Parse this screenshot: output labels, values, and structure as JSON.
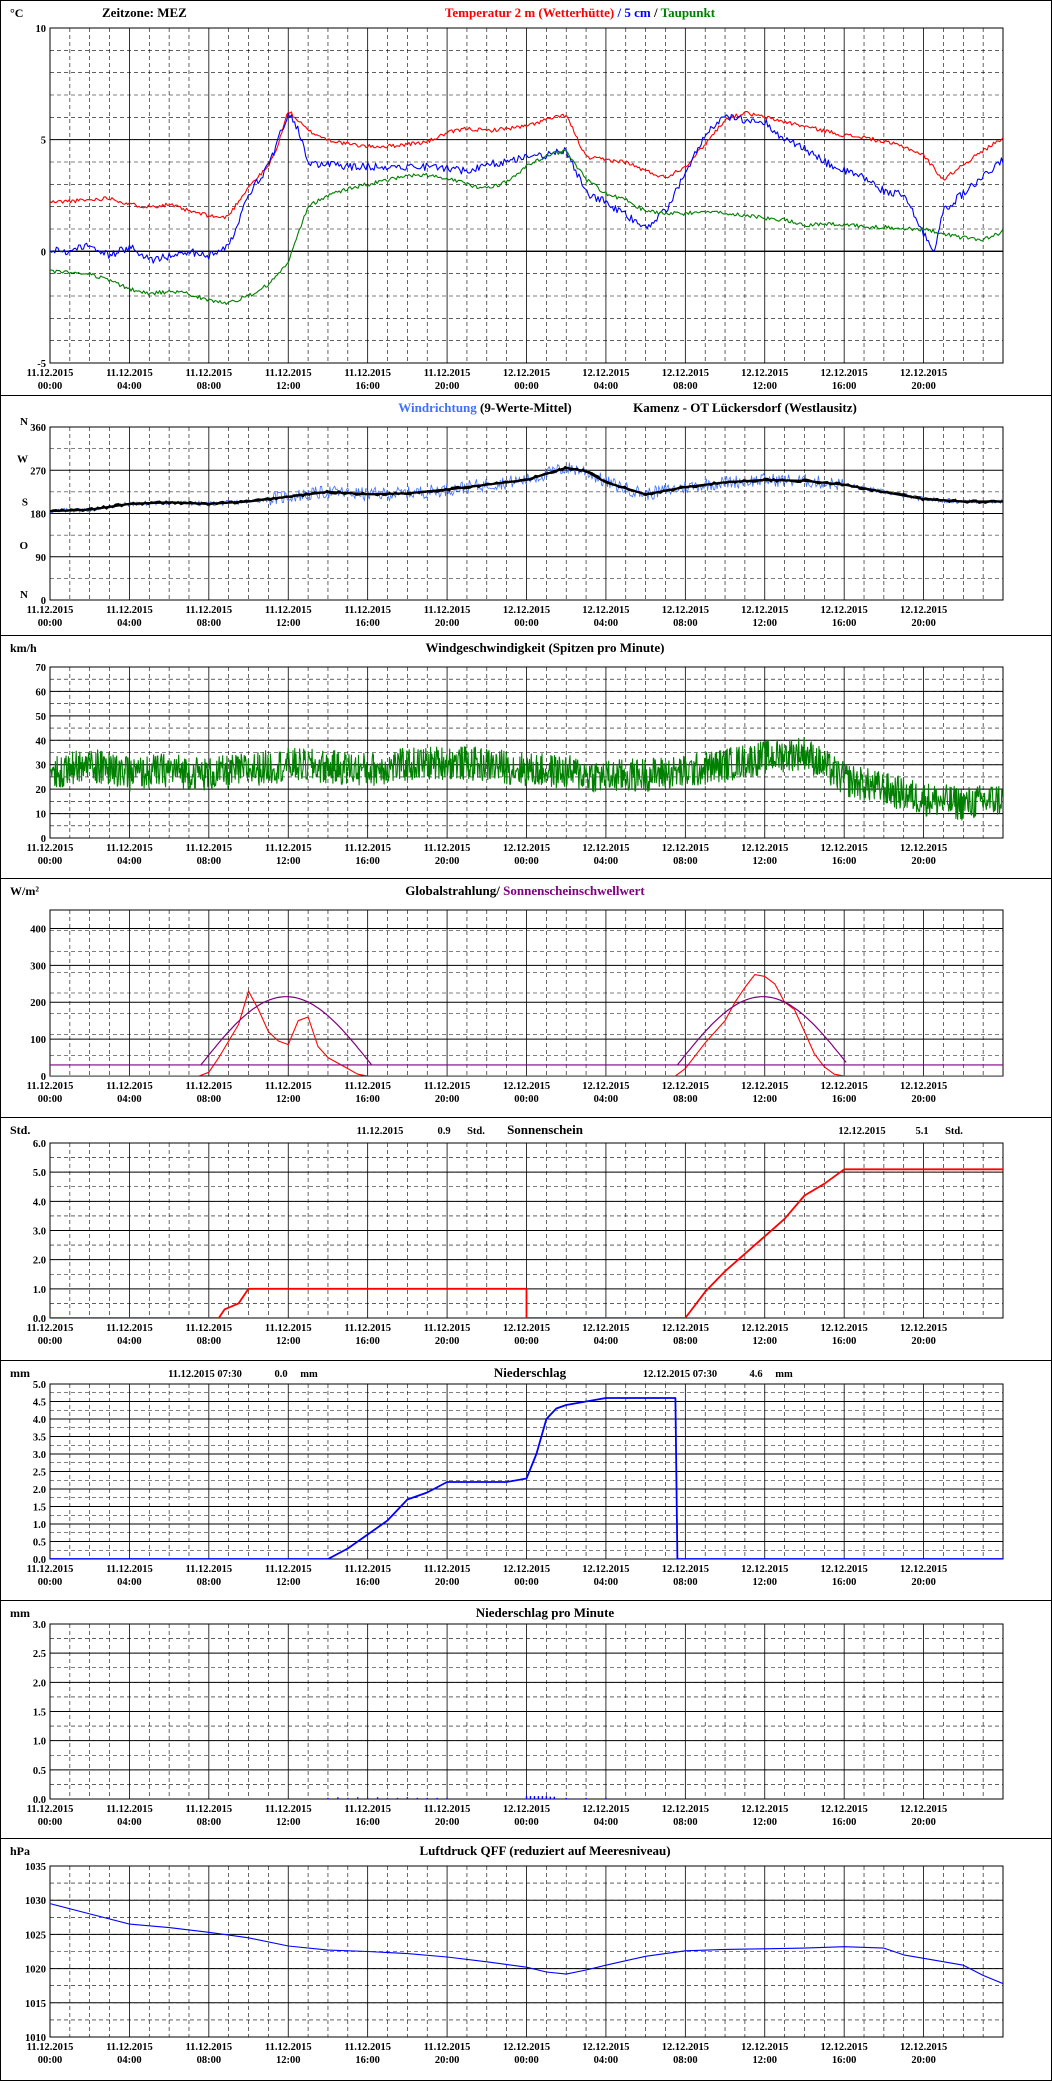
{
  "colors": {
    "red": "#ff0000",
    "blue": "#0000ff",
    "green": "#008000",
    "black": "#000000",
    "purple": "#800080",
    "windblue": "#4070ff"
  },
  "x_axis": {
    "ticks": [
      {
        "date": "11.12.2015",
        "time": "00:00"
      },
      {
        "date": "11.12.2015",
        "time": "04:00"
      },
      {
        "date": "11.12.2015",
        "time": "08:00"
      },
      {
        "date": "11.12.2015",
        "time": "12:00"
      },
      {
        "date": "11.12.2015",
        "time": "16:00"
      },
      {
        "date": "11.12.2015",
        "time": "20:00"
      },
      {
        "date": "12.12.2015",
        "time": "00:00"
      },
      {
        "date": "12.12.2015",
        "time": "04:00"
      },
      {
        "date": "12.12.2015",
        "time": "08:00"
      },
      {
        "date": "12.12.2015",
        "time": "12:00"
      },
      {
        "date": "12.12.2015",
        "time": "16:00"
      },
      {
        "date": "12.12.2015",
        "time": "20:00"
      }
    ],
    "range_hours": [
      0,
      48
    ]
  },
  "chart_data": [
    {
      "id": "temp",
      "type": "line",
      "unit": "°C",
      "ylim": [
        -5,
        10
      ],
      "yticks": [
        "-5",
        "0",
        "5",
        "10"
      ],
      "ytick_values": [
        -5,
        0,
        5,
        10
      ],
      "title_left": "Zeitzone: MEZ",
      "title_parts": [
        {
          "text": "Temperatur 2 m (Wetterhütte)",
          "color": "red"
        },
        {
          "text": "  /  ",
          "color": "blue"
        },
        {
          "text": "5 cm",
          "color": "blue"
        },
        {
          "text": " / ",
          "color": "black"
        },
        {
          "text": "Taupunkt",
          "color": "green"
        }
      ],
      "series": [
        {
          "name": "Temperatur 2 m (Wetterhütte)",
          "color": "red",
          "x": [
            0,
            2,
            3,
            4,
            5,
            6,
            7,
            8,
            8.7,
            9,
            10,
            11,
            11.5,
            12,
            13,
            14,
            15,
            16,
            17,
            18,
            19,
            20,
            21,
            22,
            23,
            24,
            25,
            26,
            27,
            28,
            29,
            30,
            31,
            32,
            33,
            34,
            35,
            36,
            37,
            38,
            39,
            40,
            41,
            42,
            43,
            44,
            45,
            46,
            47,
            48
          ],
          "y": [
            2.2,
            2.3,
            2.4,
            2.1,
            2.0,
            2.1,
            1.8,
            1.6,
            1.5,
            1.6,
            2.9,
            3.8,
            4.8,
            6.3,
            5.4,
            5.0,
            4.8,
            4.7,
            4.7,
            4.8,
            4.9,
            5.3,
            5.5,
            5.4,
            5.5,
            5.6,
            5.9,
            6.1,
            4.2,
            4.1,
            4.0,
            3.6,
            3.3,
            3.8,
            4.8,
            5.9,
            6.2,
            6.0,
            5.8,
            5.6,
            5.4,
            5.2,
            5.1,
            4.9,
            4.7,
            4.3,
            3.2,
            3.9,
            4.5,
            5.1
          ]
        },
        {
          "name": "5 cm",
          "color": "blue",
          "x": [
            0,
            1,
            2,
            3,
            4,
            5,
            6,
            7,
            8,
            9,
            10,
            11,
            12,
            12.5,
            13,
            14,
            15,
            16,
            17,
            18,
            19,
            20,
            21,
            22,
            23,
            24,
            25,
            26,
            27,
            28,
            29,
            30,
            31,
            32,
            33,
            34,
            35,
            36,
            37,
            38,
            39,
            40,
            41,
            42,
            43,
            44,
            44.5,
            45,
            46,
            47,
            48
          ],
          "y": [
            0.1,
            0.0,
            0.3,
            -0.2,
            0.2,
            -0.4,
            -0.2,
            0.0,
            -0.2,
            0.2,
            2.6,
            3.8,
            6.2,
            5.5,
            3.9,
            3.9,
            3.8,
            3.8,
            3.8,
            3.8,
            3.8,
            3.7,
            3.6,
            3.9,
            4.0,
            4.3,
            4.3,
            4.5,
            2.6,
            2.2,
            1.6,
            1.1,
            1.8,
            3.5,
            5.2,
            6.0,
            5.9,
            5.8,
            5.0,
            4.6,
            4.0,
            3.6,
            3.3,
            2.7,
            2.5,
            0.8,
            0.0,
            1.8,
            2.6,
            3.3,
            4.1
          ]
        },
        {
          "name": "Taupunkt",
          "color": "green",
          "x": [
            0,
            2,
            3,
            4,
            5,
            6,
            7,
            8,
            9,
            10,
            11,
            12,
            13,
            14,
            15,
            16,
            17,
            18,
            19,
            20,
            21,
            22,
            23,
            24,
            25,
            26,
            27,
            28,
            29,
            30,
            31,
            32,
            33,
            34,
            35,
            36,
            37,
            38,
            39,
            40,
            41,
            42,
            43,
            44,
            45,
            46,
            47,
            48
          ],
          "y": [
            -0.9,
            -1.0,
            -1.3,
            -1.7,
            -1.9,
            -1.8,
            -1.9,
            -2.2,
            -2.3,
            -2.0,
            -1.5,
            -0.5,
            2.0,
            2.5,
            2.8,
            3.0,
            3.2,
            3.4,
            3.4,
            3.3,
            3.0,
            2.8,
            3.1,
            3.8,
            4.3,
            4.5,
            3.2,
            2.6,
            2.3,
            1.8,
            1.7,
            1.7,
            1.8,
            1.7,
            1.6,
            1.5,
            1.4,
            1.2,
            1.2,
            1.2,
            1.1,
            1.1,
            1.0,
            1.0,
            0.8,
            0.6,
            0.5,
            0.9
          ]
        }
      ]
    },
    {
      "id": "wind_dir",
      "type": "line",
      "unit": "",
      "ylim": [
        0,
        360
      ],
      "yticks": [
        "0",
        "90",
        "180",
        "270",
        "360"
      ],
      "ytick_values": [
        0,
        90,
        180,
        270,
        360
      ],
      "compass_labels": [
        "N",
        "O",
        "S",
        "W",
        "N"
      ],
      "title_parts": [
        {
          "text": "Windrichtung",
          "color": "windblue"
        },
        {
          "text": " (9-Werte-Mittel)",
          "color": "black"
        }
      ],
      "title_right": "Kamenz - OT Lückersdorf (Westlausitz)",
      "series": [
        {
          "name": "Windrichtung",
          "color": "windblue",
          "kind": "raw"
        },
        {
          "name": "9-Werte-Mittel",
          "color": "black",
          "x": [
            0,
            2,
            4,
            6,
            8,
            10,
            12,
            14,
            16,
            18,
            20,
            22,
            24,
            26,
            27,
            28,
            30,
            32,
            34,
            36,
            38,
            40,
            42,
            44,
            46,
            48
          ],
          "y": [
            185,
            188,
            200,
            203,
            200,
            205,
            215,
            225,
            220,
            222,
            230,
            240,
            250,
            275,
            268,
            245,
            220,
            235,
            245,
            250,
            248,
            240,
            225,
            210,
            205,
            205
          ]
        }
      ]
    },
    {
      "id": "wind_speed",
      "type": "line",
      "unit": "km/h",
      "ylim": [
        0,
        70
      ],
      "yticks": [
        "0",
        "10",
        "20",
        "30",
        "40",
        "50",
        "60",
        "70"
      ],
      "ytick_values": [
        0,
        10,
        20,
        30,
        40,
        50,
        60,
        70
      ],
      "title": "Windgeschwindigkeit (Spitzen pro Minute)",
      "series": [
        {
          "name": "Windgeschwindigkeit",
          "color": "green",
          "x": [
            0,
            2,
            4,
            6,
            8,
            10,
            12,
            14,
            16,
            18,
            20,
            22,
            24,
            26,
            28,
            30,
            32,
            34,
            36,
            38,
            40,
            42,
            44,
            46,
            48
          ],
          "y": [
            27,
            30,
            26,
            28,
            26,
            28,
            30,
            29,
            28,
            30,
            31,
            30,
            28,
            27,
            25,
            26,
            27,
            30,
            33,
            35,
            24,
            20,
            16,
            14,
            16
          ]
        }
      ]
    },
    {
      "id": "radiation",
      "type": "line",
      "unit": "W/m²",
      "ylim": [
        0,
        450
      ],
      "yticks": [
        "0",
        "100",
        "200",
        "300",
        "400"
      ],
      "ytick_values": [
        0,
        100,
        200,
        300,
        400
      ],
      "title_parts": [
        {
          "text": "Globalstrahlung/ ",
          "color": "black"
        },
        {
          "text": "Sonnenscheinschwellwert",
          "color": "purple"
        }
      ],
      "series": [
        {
          "name": "Globalstrahlung",
          "color": "red",
          "x": [
            0,
            7.5,
            8,
            8.5,
            9,
            9.5,
            10,
            10.5,
            11,
            11.5,
            12,
            12.5,
            13,
            13.5,
            14,
            14.5,
            15,
            15.5,
            16,
            48,
            31.5,
            32,
            33,
            34,
            34.5,
            35,
            35.5,
            36,
            36.5,
            37,
            37.5,
            38,
            38.5,
            39,
            39.5,
            40
          ],
          "y": [
            0,
            0,
            10,
            50,
            95,
            140,
            230,
            180,
            120,
            95,
            85,
            150,
            160,
            80,
            50,
            35,
            20,
            5,
            0,
            0,
            0,
            20,
            90,
            150,
            200,
            240,
            275,
            270,
            250,
            200,
            180,
            120,
            60,
            25,
            5,
            0
          ]
        },
        {
          "name": "Sonnenscheinschwellwert",
          "color": "purple",
          "baseline": 30
        }
      ]
    },
    {
      "id": "sunshine",
      "type": "line",
      "unit": "Std.",
      "ylim": [
        0,
        6
      ],
      "yticks": [
        "0.0",
        "1.0",
        "2.0",
        "3.0",
        "4.0",
        "5.0",
        "6.0"
      ],
      "ytick_values": [
        0,
        1,
        2,
        3,
        4,
        5,
        6
      ],
      "title": "Sonnenschein",
      "label_day1": {
        "date": "11.12.2015",
        "value": "0.9",
        "unit": "Std."
      },
      "label_day2": {
        "date": "12.12.2015",
        "value": "5.1",
        "unit": "Std."
      },
      "series": [
        {
          "name": "Sonnenschein",
          "color": "red",
          "x": [
            0,
            8.5,
            8.8,
            9.5,
            10,
            24,
            24,
            32,
            33,
            34,
            35,
            36,
            37,
            38,
            39,
            40,
            48
          ],
          "y": [
            0,
            0,
            0.3,
            0.5,
            1.0,
            1.0,
            0,
            0,
            0.9,
            1.6,
            2.2,
            2.8,
            3.4,
            4.2,
            4.6,
            5.1,
            5.1
          ]
        }
      ]
    },
    {
      "id": "precip",
      "type": "line",
      "unit": "mm",
      "ylim": [
        0,
        5
      ],
      "yticks": [
        "0.0",
        "0.5",
        "1.0",
        "1.5",
        "2.0",
        "2.5",
        "3.0",
        "3.5",
        "4.0",
        "4.5",
        "5.0"
      ],
      "ytick_values": [
        0,
        0.5,
        1,
        1.5,
        2,
        2.5,
        3,
        3.5,
        4,
        4.5,
        5
      ],
      "title": "Niederschlag",
      "label_day1": {
        "date": "11.12.2015 07:30",
        "value": "0.0",
        "unit": "mm"
      },
      "label_day2": {
        "date": "12.12.2015 07:30",
        "value": "4.6",
        "unit": "mm"
      },
      "series": [
        {
          "name": "Niederschlag",
          "color": "blue",
          "x": [
            0,
            14,
            15,
            16,
            17,
            18,
            19,
            20,
            21,
            22,
            23,
            24,
            24.5,
            25,
            25.5,
            26,
            27,
            28,
            29,
            30,
            31.5,
            31.6,
            48
          ],
          "y": [
            0,
            0,
            0.3,
            0.7,
            1.1,
            1.7,
            1.9,
            2.2,
            2.2,
            2.2,
            2.2,
            2.3,
            3.0,
            4.0,
            4.3,
            4.4,
            4.5,
            4.6,
            4.6,
            4.6,
            4.6,
            0,
            0
          ]
        }
      ]
    },
    {
      "id": "precip_min",
      "type": "bar",
      "unit": "mm",
      "ylim": [
        0,
        3
      ],
      "yticks": [
        "0.0",
        "0.5",
        "1.0",
        "1.5",
        "2.0",
        "2.5",
        "3.0"
      ],
      "ytick_values": [
        0,
        0.5,
        1,
        1.5,
        2,
        2.5,
        3
      ],
      "title": "Niederschlag pro Minute",
      "series": [
        {
          "name": "Niederschlag pro Minute",
          "color": "blue",
          "x": [
            14,
            14.5,
            15,
            15.5,
            16,
            16.5,
            17,
            17.5,
            18,
            18.5,
            19,
            19.5,
            20,
            24,
            24.2,
            24.4,
            24.6,
            24.8,
            25,
            25.2,
            25.4,
            26,
            27,
            28
          ],
          "y": [
            0.02,
            0.03,
            0.02,
            0.03,
            0.02,
            0.03,
            0.02,
            0.02,
            0.03,
            0.02,
            0.02,
            0.02,
            0.02,
            0.05,
            0.05,
            0.05,
            0.05,
            0.05,
            0.05,
            0.04,
            0.04,
            0.02,
            0.02,
            0.02
          ]
        }
      ]
    },
    {
      "id": "pressure",
      "type": "line",
      "unit": "hPa",
      "ylim": [
        1010,
        1035
      ],
      "yticks": [
        "1010",
        "1015",
        "1020",
        "1025",
        "1030",
        "1035"
      ],
      "ytick_values": [
        1010,
        1015,
        1020,
        1025,
        1030,
        1035
      ],
      "title": "Luftdruck QFF (reduziert auf Meeresniveau)",
      "series": [
        {
          "name": "Luftdruck QFF",
          "color": "blue",
          "x": [
            0,
            2,
            4,
            6,
            8,
            10,
            12,
            14,
            16,
            18,
            20,
            22,
            24,
            25,
            26,
            27,
            28,
            30,
            32,
            34,
            36,
            38,
            40,
            42,
            43,
            44,
            46,
            47,
            48
          ],
          "y": [
            1029.5,
            1028,
            1026.5,
            1026,
            1025.3,
            1024.5,
            1023.3,
            1022.7,
            1022.5,
            1022.2,
            1021.7,
            1021,
            1020.2,
            1019.5,
            1019.2,
            1019.8,
            1020.5,
            1021.8,
            1022.6,
            1022.8,
            1022.9,
            1023.0,
            1023.2,
            1023.0,
            1022.0,
            1021.5,
            1020.5,
            1019.0,
            1017.8
          ]
        }
      ]
    }
  ]
}
